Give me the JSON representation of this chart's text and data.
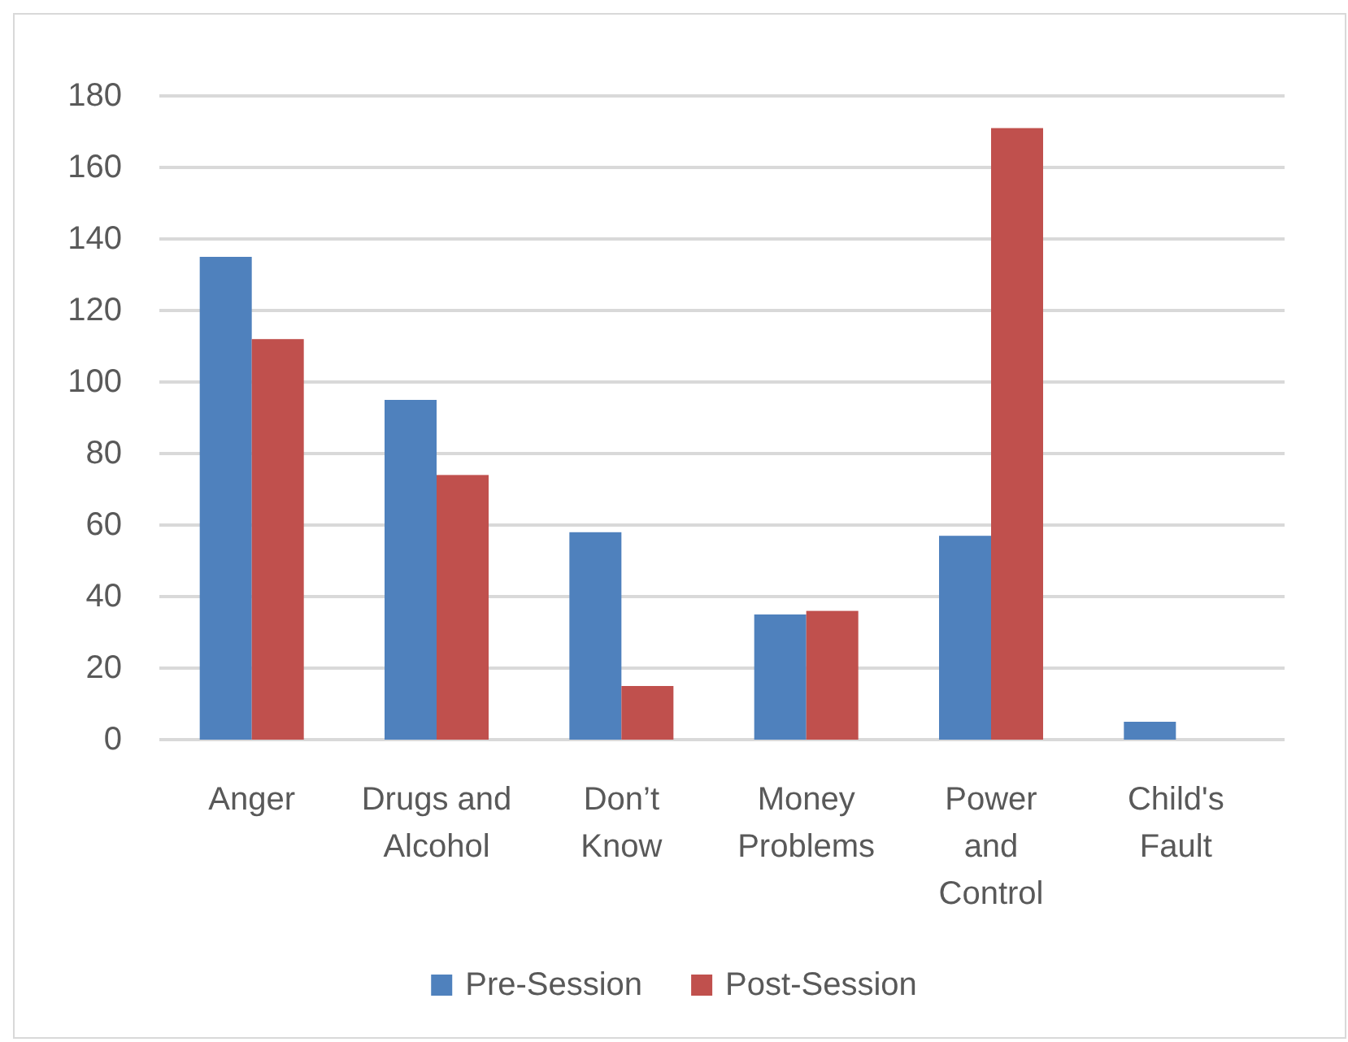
{
  "chart_data": {
    "type": "bar",
    "categories": [
      "Anger",
      "Drugs and Alcohol",
      "Don’t Know",
      "Money Problems",
      "Power and Control",
      "Child's Fault"
    ],
    "series": [
      {
        "name": "Pre-Session",
        "color": "#4f81bd",
        "values": [
          135,
          95,
          58,
          35,
          57,
          5
        ]
      },
      {
        "name": "Post-Session",
        "color": "#c0504d",
        "values": [
          112,
          74,
          15,
          36,
          171,
          0
        ]
      }
    ],
    "ylim": [
      0,
      180
    ],
    "yticks": [
      0,
      20,
      40,
      60,
      80,
      100,
      120,
      140,
      160,
      180
    ],
    "grid": true,
    "legend": "bottom"
  }
}
